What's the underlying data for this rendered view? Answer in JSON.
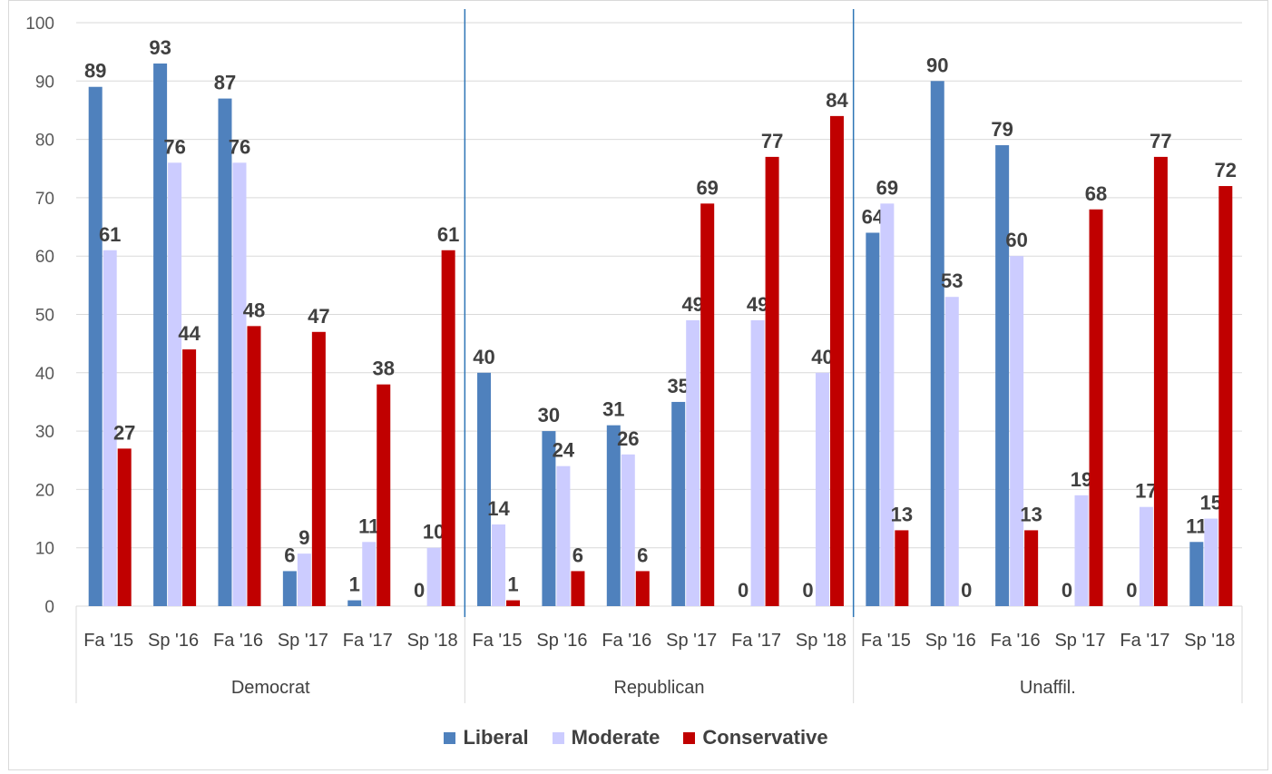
{
  "chart_data": {
    "type": "bar",
    "groups": [
      {
        "name": "Democrat",
        "categories": [
          "Fa '15",
          "Sp '16",
          "Fa '16",
          "Sp '17",
          "Fa '17",
          "Sp '18"
        ]
      },
      {
        "name": "Republican",
        "categories": [
          "Fa '15",
          "Sp '16",
          "Fa '16",
          "Sp '17",
          "Fa '17",
          "Sp '18"
        ]
      },
      {
        "name": "Unaffil.",
        "categories": [
          "Fa '15",
          "Sp '16",
          "Fa '16",
          "Sp '17",
          "Fa '17",
          "Sp '18"
        ]
      }
    ],
    "series": [
      {
        "name": "Liberal",
        "color": "#4f81bd",
        "values": [
          89,
          93,
          87,
          6,
          1,
          0,
          40,
          30,
          31,
          35,
          0,
          0,
          64,
          90,
          79,
          0,
          0,
          11
        ]
      },
      {
        "name": "Moderate",
        "color": "#ccccff",
        "values": [
          61,
          76,
          76,
          9,
          11,
          10,
          14,
          24,
          26,
          49,
          49,
          40,
          69,
          53,
          60,
          19,
          17,
          15
        ]
      },
      {
        "name": "Conservative",
        "color": "#c00000",
        "values": [
          27,
          44,
          48,
          47,
          38,
          61,
          1,
          6,
          6,
          69,
          77,
          84,
          13,
          0,
          13,
          68,
          77,
          72
        ]
      }
    ],
    "ylim": [
      0,
      100
    ],
    "yticks": [
      "0",
      "10",
      "20",
      "30",
      "40",
      "50",
      "60",
      "70",
      "80",
      "90",
      "100"
    ],
    "grid": true,
    "legend_position": "bottom"
  }
}
